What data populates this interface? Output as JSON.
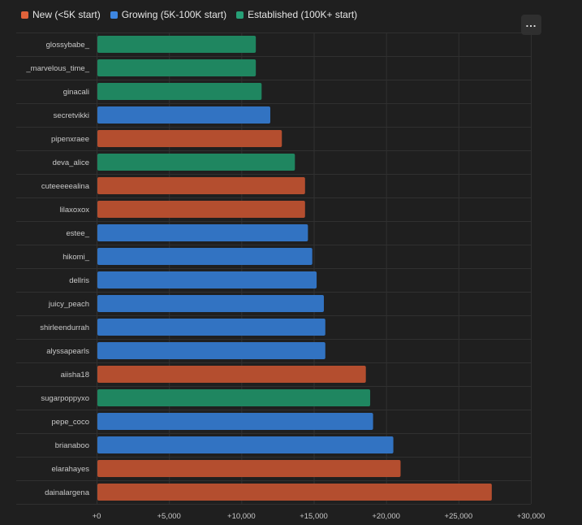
{
  "legend": {
    "new_label": "New (<5K start)",
    "growing_label": "Growing (5K-100K start)",
    "established_label": "Established (100K+ start)"
  },
  "menu": {
    "label": "..."
  },
  "colors": {
    "new": "#b44e2f",
    "growing": "#3273c2",
    "established": "#1f8660",
    "new_legend": "#e0623a",
    "growing_legend": "#3d86e0",
    "established_legend": "#27a077",
    "grid": "#303030",
    "background": "#1f1f1f"
  },
  "chart_data": {
    "type": "bar",
    "orientation": "horizontal",
    "categories": [
      "glossybabe_",
      "_marvelous_time_",
      "ginacali",
      "secretvikki",
      "pipenxraee",
      "deva_alice",
      "cuteeeeealina",
      "lilaxoxox",
      "estee_",
      "hikomi_",
      "dellris",
      "juicy_peach",
      "shirleendurrah",
      "alyssapearls",
      "aiisha18",
      "sugarpoppyxo",
      "pepe_coco",
      "brianaboo",
      "elarahayes",
      "dainalargena"
    ],
    "values": [
      11000,
      11000,
      11400,
      12000,
      12800,
      13700,
      14400,
      14400,
      14600,
      14900,
      15200,
      15700,
      15800,
      15800,
      18600,
      18900,
      19100,
      20500,
      21000,
      27300
    ],
    "groups": [
      "established",
      "established",
      "established",
      "growing",
      "new",
      "established",
      "new",
      "new",
      "growing",
      "growing",
      "growing",
      "growing",
      "growing",
      "growing",
      "new",
      "established",
      "growing",
      "growing",
      "new",
      "new"
    ],
    "xlim": [
      0,
      30000
    ],
    "xticks": [
      0,
      5000,
      10000,
      15000,
      20000,
      25000,
      30000
    ],
    "xtick_labels": [
      "+0",
      "+5,000",
      "+10,000",
      "+15,000",
      "+20,000",
      "+25,000",
      "+30,000"
    ],
    "grid": true,
    "legend_position": "top-left"
  }
}
